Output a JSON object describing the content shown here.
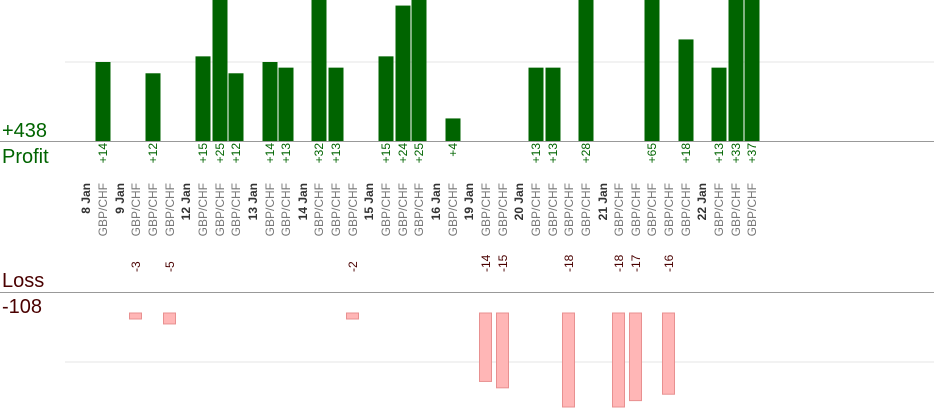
{
  "chart_data": {
    "type": "bar",
    "colors": {
      "profit_bar": "#006400",
      "profit_text": "#006400",
      "loss_bar": "#ffb6b6",
      "loss_bar_edge": "#e89090",
      "loss_text": "#4a0000",
      "pair_text": "#777777",
      "axis": "#999999",
      "grid": "#e6e6e6"
    },
    "profit": {
      "label": "Profit",
      "total": "+438",
      "ylim": [
        0,
        30
      ]
    },
    "loss": {
      "label": "Loss",
      "total": "-108",
      "ylim": [
        0,
        18
      ]
    },
    "date_labels": [
      "8 Jan",
      "9 Jan",
      "12 Jan",
      "13 Jan",
      "14 Jan",
      "15 Jan",
      "16 Jan",
      "19 Jan",
      "20 Jan",
      "21 Jan",
      "22 Jan"
    ],
    "trades": [
      {
        "date": "8 Jan",
        "pair": "GBP/CHF",
        "value": 14
      },
      {
        "date": "9 Jan",
        "pair": "GBP/CHF",
        "value": -3
      },
      {
        "date": "9 Jan",
        "pair": "GBP/CHF",
        "value": 12
      },
      {
        "date": "9 Jan",
        "pair": "GBP/CHF",
        "value": -5
      },
      {
        "date": "12 Jan",
        "pair": "GBP/CHF",
        "value": 15
      },
      {
        "date": "12 Jan",
        "pair": "GBP/CHF",
        "value": 25
      },
      {
        "date": "12 Jan",
        "pair": "GBP/CHF",
        "value": 12
      },
      {
        "date": "13 Jan",
        "pair": "GBP/CHF",
        "value": 14
      },
      {
        "date": "13 Jan",
        "pair": "GBP/CHF",
        "value": 13
      },
      {
        "date": "14 Jan",
        "pair": "GBP/CHF",
        "value": 32
      },
      {
        "date": "14 Jan",
        "pair": "GBP/CHF",
        "value": 13
      },
      {
        "date": "14 Jan",
        "pair": "GBP/CHF",
        "value": -2
      },
      {
        "date": "15 Jan",
        "pair": "GBP/CHF",
        "value": 15
      },
      {
        "date": "15 Jan",
        "pair": "GBP/CHF",
        "value": 24
      },
      {
        "date": "15 Jan",
        "pair": "GBP/CHF",
        "value": 25
      },
      {
        "date": "16 Jan",
        "pair": "GBP/CHF",
        "value": 4
      },
      {
        "date": "19 Jan",
        "pair": "GBP/CHF",
        "value": -14
      },
      {
        "date": "19 Jan",
        "pair": "GBP/CHF",
        "value": -15
      },
      {
        "date": "20 Jan",
        "pair": "GBP/CHF",
        "value": 13
      },
      {
        "date": "20 Jan",
        "pair": "GBP/CHF",
        "value": 13
      },
      {
        "date": "20 Jan",
        "pair": "GBP/CHF",
        "value": -18
      },
      {
        "date": "20 Jan",
        "pair": "GBP/CHF",
        "value": 28
      },
      {
        "date": "21 Jan",
        "pair": "GBP/CHF",
        "value": -18
      },
      {
        "date": "21 Jan",
        "pair": "GBP/CHF",
        "value": -17
      },
      {
        "date": "21 Jan",
        "pair": "GBP/CHF",
        "value": 65
      },
      {
        "date": "21 Jan",
        "pair": "GBP/CHF",
        "value": -16
      },
      {
        "date": "21 Jan",
        "pair": "GBP/CHF",
        "value": 18
      },
      {
        "date": "22 Jan",
        "pair": "GBP/CHF",
        "value": 13
      },
      {
        "date": "22 Jan",
        "pair": "GBP/CHF",
        "value": 33
      },
      {
        "date": "22 Jan",
        "pair": "GBP/CHF",
        "value": 37
      }
    ]
  }
}
